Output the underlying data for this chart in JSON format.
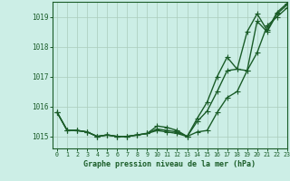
{
  "title": "Graphe pression niveau de la mer (hPa)",
  "background_color": "#cceee6",
  "grid_color": "#aaccbb",
  "line_color": "#1a5c28",
  "xlim": [
    -0.5,
    23
  ],
  "ylim": [
    1014.6,
    1019.5
  ],
  "yticks": [
    1015,
    1016,
    1017,
    1018,
    1019
  ],
  "xticks": [
    0,
    1,
    2,
    3,
    4,
    5,
    6,
    7,
    8,
    9,
    10,
    11,
    12,
    13,
    14,
    15,
    16,
    17,
    18,
    19,
    20,
    21,
    22,
    23
  ],
  "series1": [
    1015.8,
    1015.2,
    1015.2,
    1015.15,
    1015.0,
    1015.05,
    1015.0,
    1015.0,
    1015.05,
    1015.1,
    1015.2,
    1015.15,
    1015.1,
    1015.0,
    1015.15,
    1015.2,
    1015.8,
    1016.3,
    1016.5,
    1017.2,
    1017.8,
    1018.7,
    1019.0,
    1019.3
  ],
  "series2": [
    1015.8,
    1015.2,
    1015.2,
    1015.15,
    1015.0,
    1015.05,
    1015.0,
    1015.0,
    1015.05,
    1015.1,
    1015.25,
    1015.2,
    1015.15,
    1015.0,
    1015.5,
    1015.85,
    1016.5,
    1017.2,
    1017.25,
    1017.2,
    1018.85,
    1018.5,
    1019.1,
    1019.4
  ],
  "series3": [
    1015.8,
    1015.2,
    1015.2,
    1015.15,
    1015.0,
    1015.05,
    1015.0,
    1015.0,
    1015.05,
    1015.1,
    1015.35,
    1015.3,
    1015.2,
    1015.0,
    1015.6,
    1016.15,
    1017.0,
    1017.65,
    1017.25,
    1018.5,
    1019.1,
    1018.55,
    1019.15,
    1019.45
  ],
  "marker_size": 2.5,
  "line_width": 1.0
}
